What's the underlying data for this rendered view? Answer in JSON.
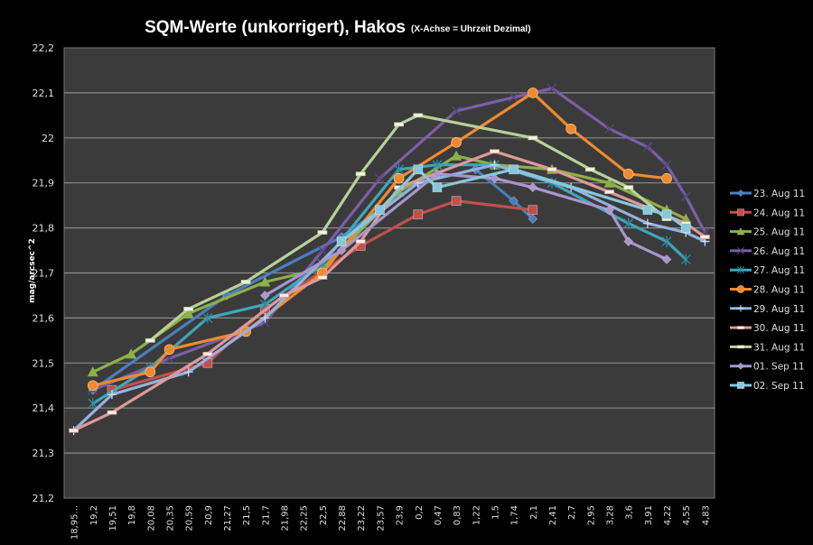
{
  "chart_data": {
    "type": "line",
    "title": "SQM-Werte (unkorrigert), Hakos",
    "subtitle": "(X-Achse = Uhrzeit Dezimal)",
    "xlabel": "",
    "ylabel": "mag/arcsec^2",
    "ylim": [
      21.2,
      22.2
    ],
    "yticks": [
      "21,2",
      "21,3",
      "21,4",
      "21,5",
      "21,6",
      "21,7",
      "21,8",
      "21,9",
      "22",
      "22,1",
      "22,2"
    ],
    "ytick_values": [
      21.2,
      21.3,
      21.4,
      21.5,
      21.6,
      21.7,
      21.8,
      21.9,
      22.0,
      22.1,
      22.2
    ],
    "grid": true,
    "legend_position": "right",
    "categories": [
      "18,95...",
      "19,2",
      "19,51",
      "19,8",
      "20,08",
      "20,35",
      "20,59",
      "20,9",
      "21,27",
      "21,5",
      "21,7",
      "21,98",
      "22,25",
      "22,5",
      "22,88",
      "23,22",
      "23,57",
      "23,9",
      "0,2",
      "0,47",
      "0,83",
      "1,22",
      "1,5",
      "1,74",
      "2,1",
      "2,41",
      "2,7",
      "2,95",
      "3,28",
      "3,6",
      "3,91",
      "4,22",
      "4,55",
      "4,83"
    ],
    "series": [
      {
        "name": "23. Aug 11",
        "color": "#4a7ebf",
        "marker": "diamond",
        "values": [
          null,
          21.44,
          null,
          null,
          null,
          null,
          null,
          null,
          21.65,
          null,
          null,
          null,
          null,
          null,
          21.78,
          null,
          null,
          null,
          21.9,
          null,
          null,
          21.93,
          null,
          21.86,
          21.82,
          null,
          null,
          null,
          null,
          null,
          null,
          null,
          null,
          null
        ]
      },
      {
        "name": "24. Aug 11",
        "color": "#c0504d",
        "marker": "square",
        "values": [
          null,
          null,
          21.44,
          null,
          null,
          null,
          null,
          21.5,
          null,
          null,
          21.62,
          null,
          null,
          null,
          null,
          21.76,
          null,
          null,
          21.83,
          null,
          21.86,
          null,
          null,
          null,
          21.84,
          null,
          null,
          null,
          null,
          null,
          null,
          null,
          null,
          null
        ]
      },
      {
        "name": "25. Aug 11",
        "color": "#8db04a",
        "marker": "triangle",
        "values": [
          null,
          21.48,
          null,
          21.52,
          null,
          null,
          21.61,
          null,
          null,
          null,
          21.68,
          null,
          null,
          21.71,
          null,
          null,
          null,
          21.88,
          null,
          null,
          21.96,
          null,
          21.94,
          null,
          null,
          21.93,
          null,
          null,
          21.9,
          null,
          null,
          21.84,
          21.82,
          null
        ]
      },
      {
        "name": "26. Aug 11",
        "color": "#7b5ea8",
        "marker": "x",
        "values": [
          null,
          21.44,
          null,
          null,
          null,
          21.51,
          null,
          null,
          null,
          null,
          21.59,
          null,
          null,
          21.75,
          null,
          null,
          21.91,
          null,
          null,
          null,
          22.06,
          null,
          null,
          22.09,
          null,
          22.11,
          null,
          null,
          22.02,
          null,
          21.98,
          21.94,
          21.87,
          21.79
        ]
      },
      {
        "name": "27. Aug 11",
        "color": "#3fa6bb",
        "marker": "star",
        "values": [
          null,
          21.41,
          null,
          null,
          21.49,
          null,
          null,
          21.6,
          null,
          null,
          21.63,
          null,
          null,
          21.72,
          null,
          null,
          null,
          21.93,
          null,
          21.94,
          null,
          null,
          21.94,
          null,
          null,
          21.9,
          null,
          null,
          null,
          21.81,
          null,
          21.77,
          21.73,
          null
        ]
      },
      {
        "name": "28. Aug 11",
        "color": "#f08a2e",
        "marker": "circle",
        "values": [
          null,
          21.45,
          null,
          null,
          21.48,
          21.53,
          null,
          null,
          null,
          21.57,
          null,
          null,
          null,
          21.7,
          null,
          null,
          null,
          21.91,
          null,
          null,
          21.99,
          null,
          null,
          null,
          22.1,
          null,
          22.02,
          null,
          null,
          21.92,
          null,
          21.91,
          null,
          null
        ]
      },
      {
        "name": "29. Aug 11",
        "color": "#94b1e0",
        "marker": "plus",
        "values": [
          21.35,
          null,
          21.43,
          null,
          null,
          null,
          21.48,
          null,
          null,
          null,
          21.6,
          null,
          null,
          null,
          21.77,
          null,
          null,
          null,
          21.9,
          null,
          null,
          null,
          21.94,
          null,
          null,
          null,
          21.89,
          null,
          null,
          null,
          21.81,
          null,
          21.79,
          21.77
        ]
      },
      {
        "name": "30. Aug 11",
        "color": "#dd9a98",
        "marker": "dash",
        "values": [
          21.35,
          null,
          21.39,
          null,
          null,
          null,
          null,
          21.52,
          null,
          null,
          null,
          21.65,
          null,
          21.69,
          null,
          21.77,
          null,
          21.89,
          null,
          null,
          null,
          null,
          21.97,
          null,
          null,
          21.93,
          null,
          null,
          21.88,
          null,
          null,
          null,
          21.81,
          21.78
        ]
      },
      {
        "name": "31. Aug 11",
        "color": "#b8d196",
        "marker": "dash",
        "values": [
          null,
          null,
          null,
          null,
          21.55,
          null,
          21.62,
          null,
          null,
          21.68,
          null,
          null,
          null,
          21.79,
          null,
          21.92,
          null,
          22.03,
          22.05,
          null,
          null,
          null,
          null,
          null,
          22.0,
          null,
          null,
          21.93,
          null,
          21.89,
          null,
          21.82,
          null,
          null
        ]
      },
      {
        "name": "01. Sep 11",
        "color": "#a896cc",
        "marker": "diamond",
        "values": [
          null,
          null,
          null,
          null,
          null,
          null,
          null,
          null,
          null,
          null,
          21.65,
          null,
          null,
          null,
          21.75,
          null,
          null,
          null,
          null,
          21.92,
          null,
          null,
          21.91,
          null,
          21.89,
          null,
          null,
          null,
          21.84,
          21.77,
          null,
          21.73,
          null,
          null
        ]
      },
      {
        "name": "02. Sep 11",
        "color": "#86c8dd",
        "marker": "square",
        "values": [
          null,
          null,
          null,
          null,
          null,
          null,
          null,
          null,
          null,
          null,
          null,
          null,
          null,
          null,
          21.77,
          null,
          21.84,
          null,
          21.93,
          21.89,
          null,
          null,
          null,
          21.93,
          null,
          null,
          null,
          null,
          null,
          null,
          21.84,
          21.83,
          21.8,
          null
        ]
      }
    ]
  }
}
